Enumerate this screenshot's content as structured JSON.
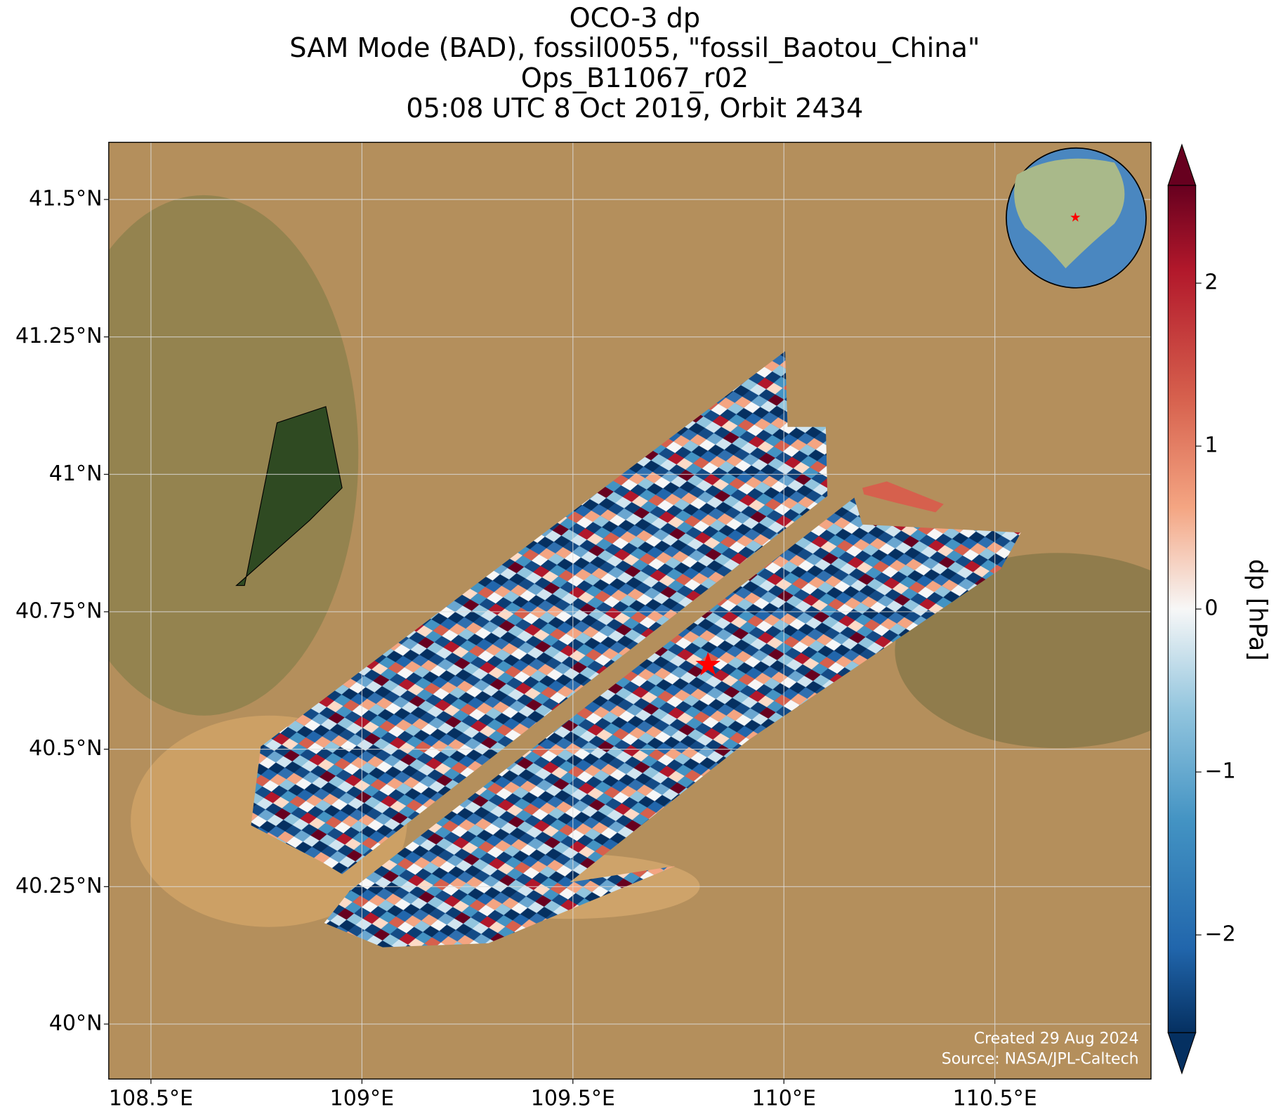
{
  "chart_data": {
    "type": "map",
    "title": [
      "OCO-3 dp",
      "SAM Mode (BAD), fossil0055, \"fossil_Baotou_China\"",
      "Ops_B11067_r02",
      "05:08 UTC 8 Oct 2019, Orbit 2434"
    ],
    "xlim": [
      108.4,
      110.87
    ],
    "ylim": [
      39.9,
      41.604
    ],
    "xticks": [
      {
        "value": 108.5,
        "label": "108.5°E"
      },
      {
        "value": 109,
        "label": "109°E"
      },
      {
        "value": 109.5,
        "label": "109.5°E"
      },
      {
        "value": 110,
        "label": "110°E"
      },
      {
        "value": 110.5,
        "label": "110.5°E"
      }
    ],
    "yticks": [
      {
        "value": 40,
        "label": "40°N"
      },
      {
        "value": 40.25,
        "label": "40.25°N"
      },
      {
        "value": 40.5,
        "label": "40.5°N"
      },
      {
        "value": 40.75,
        "label": "40.75°N"
      },
      {
        "value": 41,
        "label": "41°N"
      },
      {
        "value": 41.25,
        "label": "41.25°N"
      },
      {
        "value": 41.5,
        "label": "41.5°N"
      }
    ],
    "grid": true,
    "target": {
      "lon": 109.82,
      "lat": 40.65,
      "color": "#ff0000"
    },
    "colorbar": {
      "label": "dp [hPa]",
      "lim": [
        -2.6,
        2.6
      ],
      "ticks": [
        {
          "value": -2,
          "label": "−2"
        },
        {
          "value": -1,
          "label": "−1"
        },
        0,
        1,
        2
      ]
    },
    "notes": [
      "Created 29 Aug 2024",
      "Source: NASA/JPL-Caltech"
    ]
  }
}
